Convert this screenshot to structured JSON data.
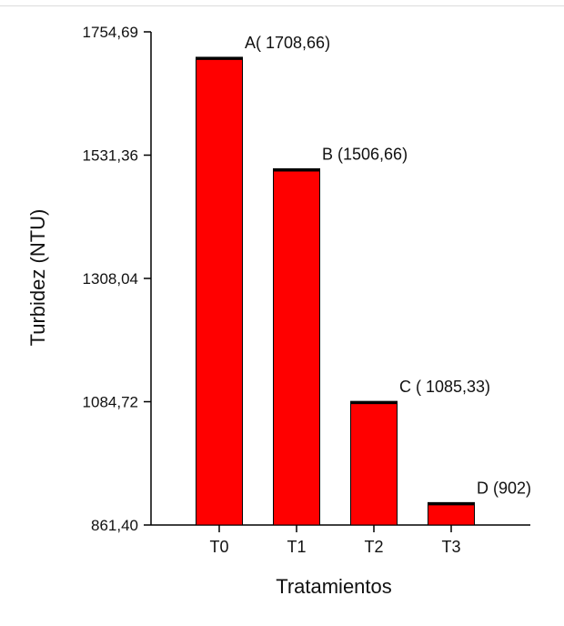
{
  "chart_data": {
    "type": "bar",
    "title": "",
    "xlabel": "Tratamientos",
    "ylabel": "Turbidez (NTU)",
    "ylim": [
      861.4,
      1754.69
    ],
    "yticks": [
      "1754,69",
      "1531,36",
      "1308,04",
      "1084,72",
      "861,40"
    ],
    "ytick_values": [
      1754.69,
      1531.36,
      1308.04,
      1084.72,
      861.4
    ],
    "categories": [
      "T0",
      "T1",
      "T2",
      "T3"
    ],
    "values": [
      1708.66,
      1506.66,
      1085.33,
      902
    ],
    "bar_labels": [
      "A( 1708,66)",
      "B (1506,66)",
      "C ( 1085,33)",
      "D (902)"
    ],
    "bar_color": "#ff0000",
    "bar_top_color": "#000000",
    "grid": false,
    "legend": "none"
  }
}
